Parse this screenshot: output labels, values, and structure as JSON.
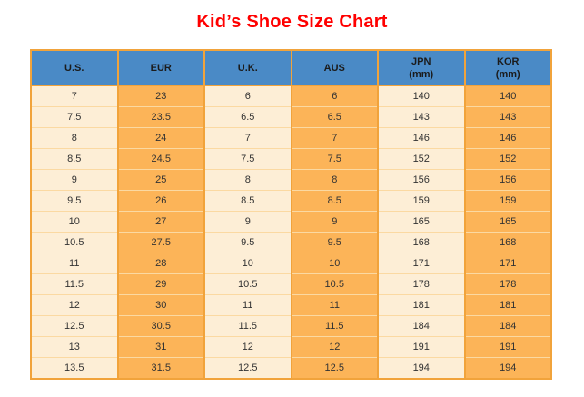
{
  "title": "Kid’s Shoe Size Chart",
  "colors": {
    "title_text": "#ff0000",
    "header_bg": "#4a8ac6",
    "header_text": "#1b1b1b",
    "cell_light": "#fdeed6",
    "cell_orange": "#fcb458",
    "grid_vertical": "#f1a33b",
    "grid_horizontal": "#fbd9a2",
    "body_text": "#333333"
  },
  "table": {
    "header": [
      {
        "line1": "U.S.",
        "line2": ""
      },
      {
        "line1": "EUR",
        "line2": ""
      },
      {
        "line1": "U.K.",
        "line2": ""
      },
      {
        "line1": "AUS",
        "line2": ""
      },
      {
        "line1": "JPN",
        "line2": "(mm)"
      },
      {
        "line1": "KOR",
        "line2": "(mm)"
      }
    ],
    "rows": [
      [
        "7",
        "23",
        "6",
        "6",
        "140",
        "140"
      ],
      [
        "7.5",
        "23.5",
        "6.5",
        "6.5",
        "143",
        "143"
      ],
      [
        "8",
        "24",
        "7",
        "7",
        "146",
        "146"
      ],
      [
        "8.5",
        "24.5",
        "7.5",
        "7.5",
        "152",
        "152"
      ],
      [
        "9",
        "25",
        "8",
        "8",
        "156",
        "156"
      ],
      [
        "9.5",
        "26",
        "8.5",
        "8.5",
        "159",
        "159"
      ],
      [
        "10",
        "27",
        "9",
        "9",
        "165",
        "165"
      ],
      [
        "10.5",
        "27.5",
        "9.5",
        "9.5",
        "168",
        "168"
      ],
      [
        "11",
        "28",
        "10",
        "10",
        "171",
        "171"
      ],
      [
        "11.5",
        "29",
        "10.5",
        "10.5",
        "178",
        "178"
      ],
      [
        "12",
        "30",
        "11",
        "11",
        "181",
        "181"
      ],
      [
        "12.5",
        "30.5",
        "11.5",
        "11.5",
        "184",
        "184"
      ],
      [
        "13",
        "31",
        "12",
        "12",
        "191",
        "191"
      ],
      [
        "13.5",
        "31.5",
        "12.5",
        "12.5",
        "194",
        "194"
      ]
    ]
  },
  "chart_data": {
    "type": "table",
    "title": "Kid’s Shoe Size Chart",
    "columns": [
      "U.S.",
      "EUR",
      "U.K.",
      "AUS",
      "JPN (mm)",
      "KOR (mm)"
    ],
    "rows": [
      [
        7,
        23,
        6,
        6,
        140,
        140
      ],
      [
        7.5,
        23.5,
        6.5,
        6.5,
        143,
        143
      ],
      [
        8,
        24,
        7,
        7,
        146,
        146
      ],
      [
        8.5,
        24.5,
        7.5,
        7.5,
        152,
        152
      ],
      [
        9,
        25,
        8,
        8,
        156,
        156
      ],
      [
        9.5,
        26,
        8.5,
        8.5,
        159,
        159
      ],
      [
        10,
        27,
        9,
        9,
        165,
        165
      ],
      [
        10.5,
        27.5,
        9.5,
        9.5,
        168,
        168
      ],
      [
        11,
        28,
        10,
        10,
        171,
        171
      ],
      [
        11.5,
        29,
        10.5,
        10.5,
        178,
        178
      ],
      [
        12,
        30,
        11,
        11,
        181,
        181
      ],
      [
        12.5,
        30.5,
        11.5,
        11.5,
        184,
        184
      ],
      [
        13,
        31,
        12,
        12,
        191,
        191
      ],
      [
        13.5,
        31.5,
        12.5,
        12.5,
        194,
        194
      ]
    ]
  }
}
